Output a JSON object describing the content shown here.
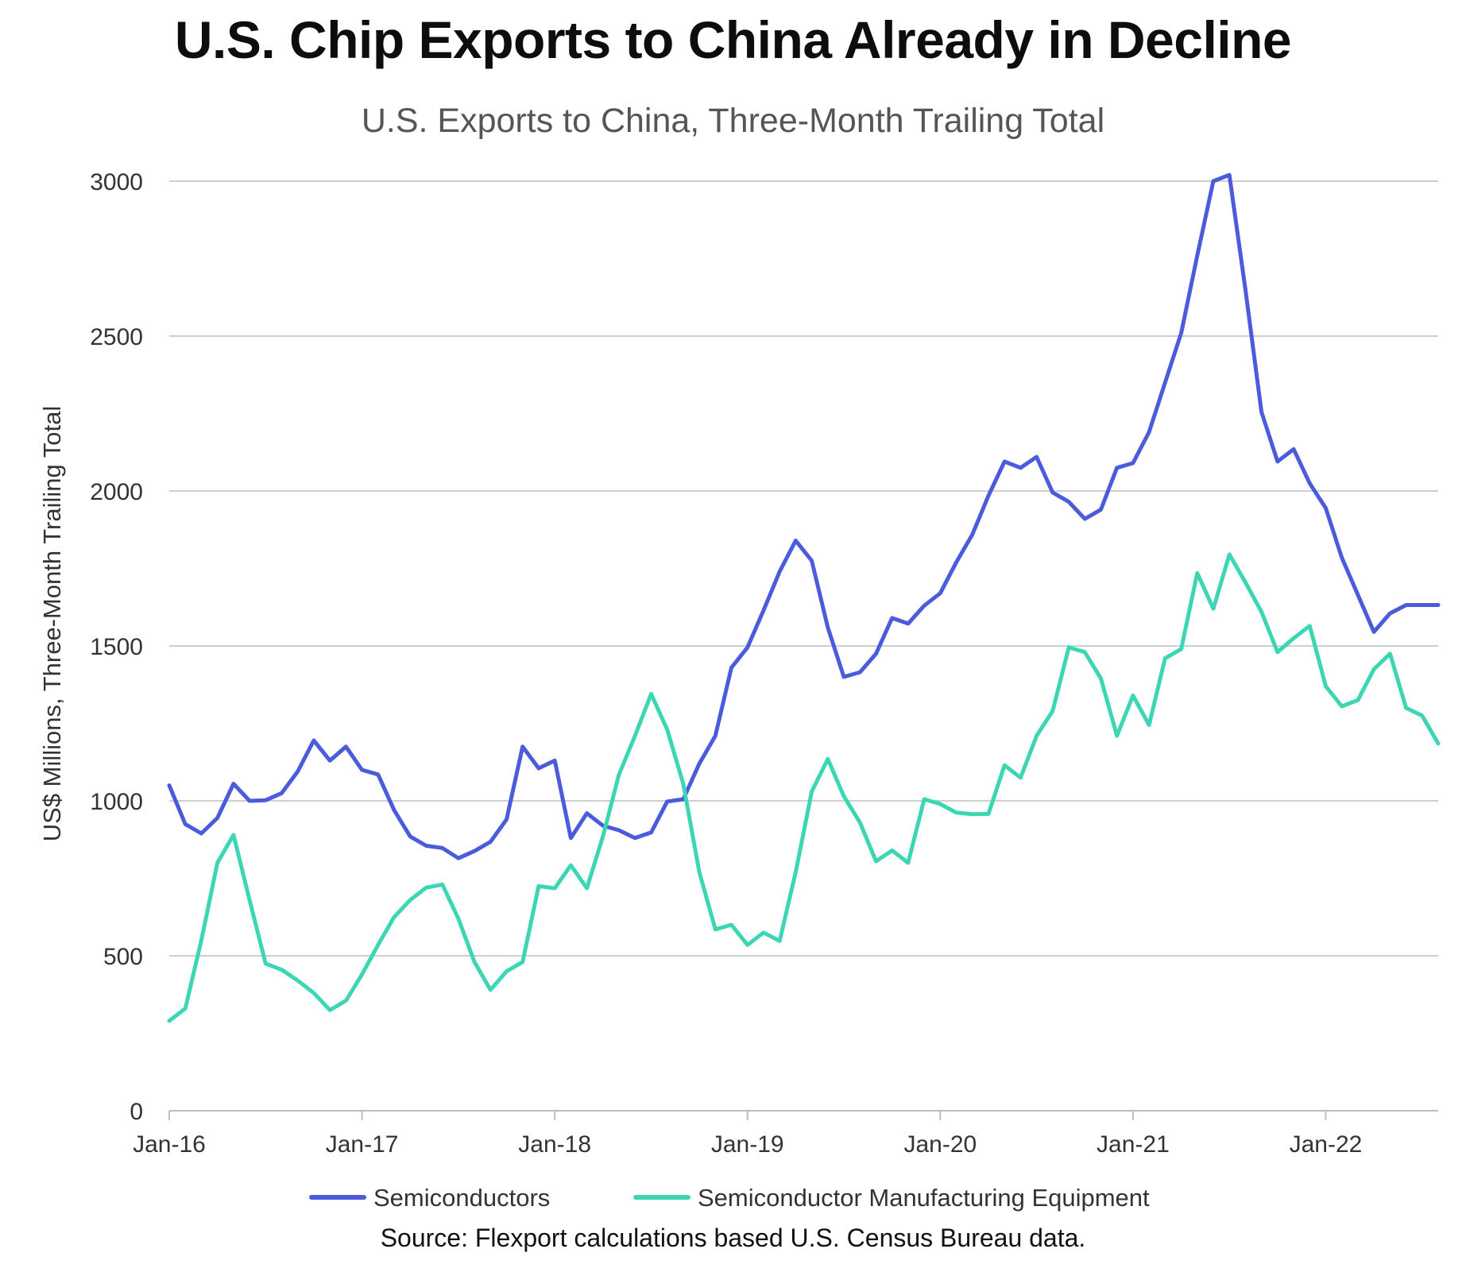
{
  "chart_data": {
    "type": "line",
    "title": "U.S. Chip Exports to China Already in Decline",
    "subtitle": "U.S. Exports to China, Three-Month Trailing Total",
    "xlabel": "",
    "ylabel": "US$ Millions, Three-Month Trailing Total",
    "ylim": [
      0,
      3000
    ],
    "yticks": [
      "0",
      "500",
      "1000",
      "1500",
      "2000",
      "2500",
      "3000"
    ],
    "xticks": [
      "Jan-16",
      "Jan-17",
      "Jan-18",
      "Jan-19",
      "Jan-20",
      "Jan-21",
      "Jan-22"
    ],
    "x_start": "Jan-16",
    "x_end": "Aug-22",
    "grid": true,
    "legend_position": "bottom",
    "series": [
      {
        "name": "Semiconductors",
        "color": "#4a5bdc",
        "values": [
          1050,
          925,
          895,
          945,
          1055,
          1000,
          1002,
          1025,
          1095,
          1195,
          1130,
          1175,
          1100,
          1085,
          970,
          885,
          855,
          848,
          815,
          838,
          868,
          940,
          1175,
          1105,
          1130,
          880,
          960,
          920,
          905,
          880,
          898,
          998,
          1005,
          1120,
          1210,
          1430,
          1495,
          1615,
          1740,
          1840,
          1775,
          1560,
          1400,
          1415,
          1475,
          1590,
          1572,
          1630,
          1670,
          1770,
          1860,
          1985,
          2095,
          2075,
          2110,
          1995,
          1965,
          1910,
          1940,
          2075,
          2090,
          2190,
          2350,
          2510,
          2760,
          3000,
          3020,
          2650,
          2255,
          2095,
          2135,
          2025,
          1945,
          1785,
          1665,
          1545,
          1605,
          1632,
          1632,
          1632
        ]
      },
      {
        "name": "Semiconductor Manufacturing Equipment",
        "color": "#3dd6b5",
        "values": [
          290,
          330,
          550,
          800,
          890,
          680,
          475,
          455,
          420,
          380,
          325,
          355,
          440,
          535,
          625,
          680,
          720,
          730,
          620,
          480,
          390,
          450,
          480,
          725,
          718,
          792,
          718,
          885,
          1085,
          1210,
          1345,
          1230,
          1055,
          770,
          585,
          600,
          535,
          575,
          548,
          770,
          1030,
          1135,
          1015,
          930,
          805,
          840,
          800,
          1005,
          990,
          962,
          957,
          958,
          1115,
          1075,
          1210,
          1290,
          1495,
          1480,
          1395,
          1210,
          1340,
          1245,
          1460,
          1490,
          1735,
          1620,
          1795,
          1705,
          1610,
          1480,
          1525,
          1565,
          1370,
          1305,
          1325,
          1425,
          1475,
          1300,
          1275,
          1185
        ]
      }
    ]
  },
  "source": "Source: Flexport calculations based U.S. Census Bureau data."
}
